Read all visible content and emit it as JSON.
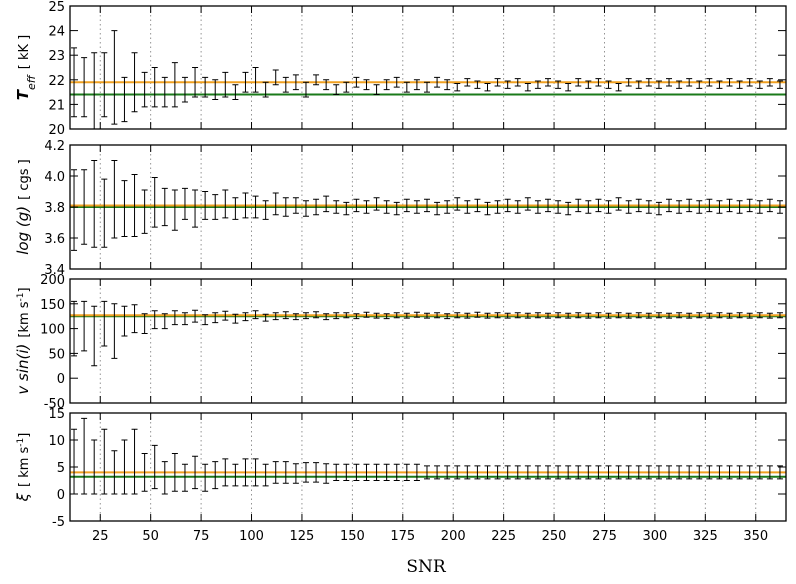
{
  "chart_data": {
    "type": "line",
    "title": "",
    "xlabel": "SNR",
    "xlim": [
      10,
      365
    ],
    "x_ticks": [
      25,
      50,
      75,
      100,
      125,
      150,
      175,
      200,
      225,
      250,
      275,
      300,
      325,
      350
    ],
    "x_tick_labels": [
      "25",
      "50",
      "75",
      "100",
      "125",
      "150",
      "175",
      "200",
      "225",
      "250",
      "275",
      "300",
      "325",
      "350"
    ],
    "x_grid": true,
    "x_step": 5,
    "x_start": 12,
    "colors": {
      "true_value": "#1a7a1a",
      "median": "#f0a020",
      "errorbar": "#000000"
    },
    "panels": [
      {
        "name": "teff",
        "ylabel_main": "T",
        "ylabel_sub": "eff",
        "ylabel_unit": "[ kK ]",
        "ylim": [
          20,
          25
        ],
        "y_ticks": [
          20,
          21,
          22,
          23,
          24,
          25
        ],
        "y_tick_labels": [
          "20",
          "21",
          "22",
          "23",
          "24",
          "25"
        ],
        "true_value": 21.4,
        "median_value": 21.9,
        "series": {
          "name": "Teff recovered",
          "center": [
            21.9,
            21.7,
            21.5,
            21.8,
            22.1,
            21.2,
            21.9,
            21.6,
            21.7,
            21.5,
            21.8,
            21.6,
            21.9,
            21.7,
            21.6,
            21.8,
            21.5,
            21.9,
            22.0,
            21.6,
            22.1,
            21.8,
            21.9,
            21.6,
            22.0,
            21.8,
            21.6,
            21.7,
            21.9,
            21.8,
            21.6,
            21.8,
            21.9,
            21.7,
            21.8,
            21.7,
            21.9,
            21.8,
            21.7,
            21.9,
            21.8,
            21.7,
            21.9,
            21.8,
            21.9,
            21.7,
            21.8,
            21.9,
            21.8,
            21.7,
            21.9,
            21.8,
            21.9,
            21.8,
            21.7,
            21.9,
            21.8,
            21.9,
            21.8,
            21.9,
            21.8,
            21.9,
            21.8,
            21.9,
            21.8,
            21.9,
            21.8,
            21.9,
            21.8,
            21.9,
            21.8
          ],
          "error": [
            1.4,
            1.2,
            1.6,
            1.3,
            1.9,
            0.9,
            1.2,
            0.7,
            0.8,
            0.6,
            0.9,
            0.5,
            0.6,
            0.4,
            0.4,
            0.5,
            0.3,
            0.4,
            0.5,
            0.3,
            0.3,
            0.3,
            0.3,
            0.3,
            0.2,
            0.2,
            0.2,
            0.2,
            0.2,
            0.2,
            0.2,
            0.2,
            0.2,
            0.2,
            0.2,
            0.2,
            0.2,
            0.2,
            0.15,
            0.15,
            0.15,
            0.15,
            0.15,
            0.15,
            0.15,
            0.15,
            0.15,
            0.15,
            0.15,
            0.15,
            0.15,
            0.15,
            0.15,
            0.15,
            0.15,
            0.15,
            0.15,
            0.15,
            0.15,
            0.15,
            0.15,
            0.15,
            0.15,
            0.15,
            0.15,
            0.15,
            0.15,
            0.15,
            0.15,
            0.15,
            0.15
          ]
        }
      },
      {
        "name": "logg",
        "ylabel_main": "log (g)",
        "ylabel_sub": "",
        "ylabel_unit": "[ cgs ]",
        "ylim": [
          3.4,
          4.2
        ],
        "y_ticks": [
          3.4,
          3.6,
          3.8,
          4.0,
          4.2
        ],
        "y_tick_labels": [
          "3.4",
          "3.6",
          "3.8",
          "4.0",
          "4.2"
        ],
        "true_value": 3.8,
        "median_value": 3.81,
        "series": {
          "name": "log g recovered",
          "center": [
            3.78,
            3.8,
            3.82,
            3.76,
            3.85,
            3.79,
            3.81,
            3.77,
            3.83,
            3.8,
            3.78,
            3.82,
            3.79,
            3.81,
            3.8,
            3.82,
            3.79,
            3.81,
            3.8,
            3.78,
            3.82,
            3.8,
            3.81,
            3.79,
            3.8,
            3.82,
            3.8,
            3.79,
            3.81,
            3.8,
            3.82,
            3.8,
            3.79,
            3.81,
            3.8,
            3.81,
            3.79,
            3.8,
            3.82,
            3.8,
            3.81,
            3.79,
            3.8,
            3.81,
            3.8,
            3.82,
            3.8,
            3.81,
            3.8,
            3.79,
            3.81,
            3.8,
            3.81,
            3.8,
            3.82,
            3.8,
            3.81,
            3.8,
            3.79,
            3.81,
            3.8,
            3.81,
            3.8,
            3.81,
            3.8,
            3.81,
            3.8,
            3.81,
            3.8,
            3.81,
            3.8
          ],
          "error": [
            0.26,
            0.24,
            0.28,
            0.22,
            0.25,
            0.18,
            0.2,
            0.14,
            0.16,
            0.12,
            0.13,
            0.1,
            0.12,
            0.09,
            0.08,
            0.09,
            0.07,
            0.08,
            0.07,
            0.06,
            0.07,
            0.06,
            0.05,
            0.05,
            0.05,
            0.05,
            0.04,
            0.04,
            0.04,
            0.04,
            0.04,
            0.04,
            0.04,
            0.04,
            0.04,
            0.04,
            0.04,
            0.04,
            0.04,
            0.04,
            0.04,
            0.04,
            0.04,
            0.04,
            0.04,
            0.04,
            0.04,
            0.04,
            0.04,
            0.04,
            0.04,
            0.04,
            0.04,
            0.04,
            0.04,
            0.04,
            0.04,
            0.04,
            0.04,
            0.04,
            0.04,
            0.04,
            0.04,
            0.04,
            0.04,
            0.04,
            0.04,
            0.04,
            0.04,
            0.04,
            0.04
          ]
        }
      },
      {
        "name": "vsini",
        "ylabel_main": "v sin(i)",
        "ylabel_sub": "",
        "ylabel_unit": "[km s",
        "ylabel_unit_sup": "-1",
        "ylabel_unit_end": "]",
        "ylim": [
          -50,
          200
        ],
        "y_ticks": [
          -50,
          0,
          50,
          100,
          150,
          200
        ],
        "y_tick_labels": [
          "-50",
          "0",
          "50",
          "100",
          "150",
          "200"
        ],
        "true_value": 125,
        "median_value": 127,
        "series": {
          "name": "v sin i recovered",
          "center": [
            100,
            105,
            85,
            110,
            95,
            115,
            120,
            110,
            118,
            115,
            122,
            120,
            125,
            118,
            122,
            126,
            120,
            124,
            128,
            122,
            125,
            127,
            124,
            126,
            128,
            124,
            126,
            127,
            125,
            128,
            126,
            125,
            127,
            126,
            128,
            126,
            127,
            125,
            127,
            126,
            128,
            126,
            127,
            126,
            127,
            126,
            127,
            126,
            127,
            126,
            127,
            126,
            127,
            126,
            127,
            126,
            127,
            126,
            127,
            126,
            127,
            126,
            127,
            126,
            127,
            126,
            127,
            126,
            127,
            126,
            127
          ],
          "error": [
            55,
            50,
            60,
            45,
            55,
            30,
            28,
            20,
            18,
            15,
            14,
            12,
            12,
            10,
            10,
            9,
            9,
            8,
            8,
            7,
            7,
            7,
            6,
            6,
            6,
            6,
            6,
            5,
            5,
            5,
            5,
            5,
            5,
            5,
            5,
            5,
            5,
            5,
            5,
            5,
            5,
            5,
            5,
            5,
            5,
            5,
            5,
            5,
            5,
            5,
            5,
            5,
            5,
            5,
            5,
            5,
            5,
            5,
            5,
            5,
            5,
            5,
            5,
            5,
            5,
            5,
            5,
            5,
            5,
            5,
            5
          ]
        }
      },
      {
        "name": "xi",
        "ylabel_main": "ξ",
        "ylabel_sub": "",
        "ylabel_unit": "[ km s",
        "ylabel_unit_sup": "-1",
        "ylabel_unit_end": "]",
        "ylim": [
          -5,
          15
        ],
        "y_ticks": [
          -5,
          0,
          5,
          10,
          15
        ],
        "y_tick_labels": [
          "-5",
          "0",
          "5",
          "10",
          "15"
        ],
        "true_value": 3.2,
        "median_value": 4.0,
        "series": {
          "name": "xi recovered",
          "center": [
            6,
            7,
            5,
            6,
            4,
            5,
            6,
            4,
            5,
            3,
            4,
            3,
            4,
            3,
            3.5,
            4,
            3.5,
            4,
            4,
            3.5,
            4,
            4,
            3.8,
            4,
            4,
            3.8,
            4,
            4,
            4,
            4,
            4,
            4,
            4,
            4,
            4,
            4,
            4,
            4,
            4,
            4,
            4,
            4,
            4,
            4,
            4,
            4,
            4,
            4,
            4,
            4,
            4,
            4,
            4,
            4,
            4,
            4,
            4,
            4,
            4,
            4,
            4,
            4,
            4,
            4,
            4,
            4,
            4,
            4,
            4,
            4,
            4
          ],
          "error": [
            6,
            7,
            5,
            6,
            4,
            5,
            6,
            3.5,
            4,
            3,
            3.5,
            2.5,
            3,
            2.5,
            2.5,
            2.5,
            2,
            2.5,
            2.5,
            2,
            2,
            2,
            1.8,
            1.8,
            1.8,
            1.8,
            1.5,
            1.5,
            1.5,
            1.5,
            1.5,
            1.5,
            1.5,
            1.5,
            1.5,
            1.2,
            1.2,
            1.2,
            1.2,
            1.2,
            1.2,
            1.2,
            1.2,
            1.2,
            1.2,
            1.2,
            1.2,
            1.2,
            1.2,
            1.2,
            1.2,
            1.2,
            1.2,
            1.2,
            1.2,
            1.2,
            1.2,
            1.2,
            1.2,
            1.2,
            1.2,
            1.2,
            1.2,
            1.2,
            1.2,
            1.2,
            1.2,
            1.2,
            1.2,
            1.2,
            1.2
          ]
        }
      }
    ]
  }
}
